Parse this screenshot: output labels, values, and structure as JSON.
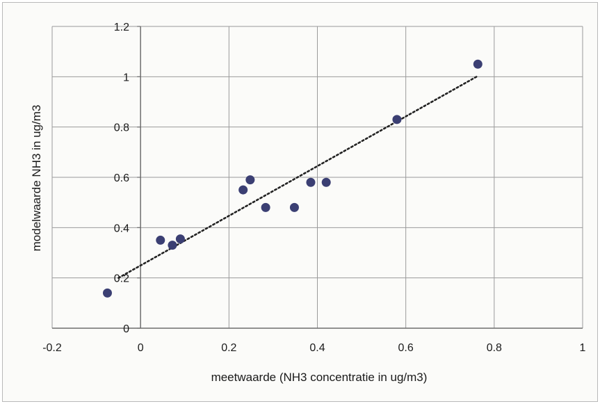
{
  "chart_data": {
    "type": "scatter",
    "title": "",
    "xlabel": "meetwaarde (NH3 concentratie in ug/m3)",
    "ylabel": "modelwaarde NH3 in ug/m3",
    "xlim": [
      -0.2,
      1
    ],
    "ylim": [
      0,
      1.2
    ],
    "x_ticks": [
      "-0.2",
      "0",
      "0.2",
      "0.4",
      "0.6",
      "0.8",
      "1"
    ],
    "y_ticks": [
      "0",
      "0.2",
      "0.4",
      "0.6",
      "0.8",
      "1",
      "1.2"
    ],
    "grid": true,
    "legend": "none",
    "series": [
      {
        "points": [
          {
            "x": -0.075,
            "y": 0.14
          },
          {
            "x": 0.045,
            "y": 0.35
          },
          {
            "x": 0.072,
            "y": 0.33
          },
          {
            "x": 0.09,
            "y": 0.355
          },
          {
            "x": 0.232,
            "y": 0.55
          },
          {
            "x": 0.248,
            "y": 0.59
          },
          {
            "x": 0.283,
            "y": 0.48
          },
          {
            "x": 0.348,
            "y": 0.48
          },
          {
            "x": 0.385,
            "y": 0.58
          },
          {
            "x": 0.42,
            "y": 0.58
          },
          {
            "x": 0.58,
            "y": 0.83
          },
          {
            "x": 0.763,
            "y": 1.05
          }
        ],
        "color": "#3b3f73"
      }
    ],
    "trendline": {
      "type": "linear",
      "style": "dotted",
      "color": "#222222",
      "x_start": -0.05,
      "y_start": 0.2,
      "x_end": 0.76,
      "y_end": 1.0
    }
  }
}
